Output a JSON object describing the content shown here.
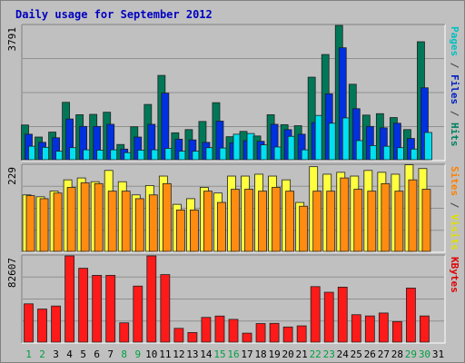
{
  "chart_data": {
    "type": "bar",
    "title": "Daily usage for September 2012",
    "days": [
      "1",
      "2",
      "3",
      "4",
      "5",
      "6",
      "7",
      "8",
      "9",
      "10",
      "11",
      "12",
      "13",
      "14",
      "15",
      "16",
      "17",
      "18",
      "19",
      "20",
      "21",
      "22",
      "23",
      "24",
      "25",
      "26",
      "27",
      "28",
      "29",
      "30",
      "31"
    ],
    "weekend_days": [
      "1",
      "2",
      "8",
      "9",
      "15",
      "16",
      "22",
      "23",
      "29",
      "30"
    ],
    "panels": [
      {
        "name": "hits-files-pages",
        "max_label": "3791",
        "ymax": 3791,
        "label_parts": [
          {
            "text": "Pages",
            "color": "#00c0c0"
          },
          {
            "text": " / ",
            "color": "#404040"
          },
          {
            "text": "Files",
            "color": "#0020c0"
          },
          {
            "text": " / ",
            "color": "#404040"
          },
          {
            "text": "Hits",
            "color": "#008060"
          }
        ],
        "series": [
          {
            "name": "Hits",
            "color": "#007858",
            "values": [
              980,
              640,
              780,
              1620,
              1270,
              1280,
              1340,
              430,
              930,
              1560,
              2380,
              760,
              850,
              1080,
              1610,
              650,
              800,
              670,
              1270,
              990,
              960,
              2330,
              2970,
              3790,
              2130,
              1260,
              1300,
              1190,
              850,
              3330,
              null
            ]
          },
          {
            "name": "Files",
            "color": "#0030e0",
            "values": [
              720,
              490,
              620,
              1150,
              940,
              940,
              1000,
              300,
              640,
              1000,
              1880,
              580,
              560,
              490,
              1090,
              480,
              540,
              520,
              1000,
              850,
              720,
              1050,
              1860,
              3160,
              1440,
              940,
              900,
              1030,
              600,
              2030,
              null
            ]
          },
          {
            "name": "Pages",
            "color": "#00e0f0",
            "values": [
              380,
              350,
              240,
              340,
              280,
              270,
              280,
              200,
              270,
              280,
              320,
              240,
              240,
              340,
              330,
              720,
              740,
              420,
              360,
              660,
              280,
              1250,
              1030,
              1180,
              540,
              400,
              380,
              340,
              300,
              770,
              null
            ]
          }
        ]
      },
      {
        "name": "visits-sites",
        "max_label": "229",
        "ymax": 229,
        "label_parts": [
          {
            "text": "Sites",
            "color": "#ff8000"
          },
          {
            "text": " / ",
            "color": "#404040"
          },
          {
            "text": "Visits",
            "color": "#e0e000"
          }
        ],
        "series": [
          {
            "name": "Visits",
            "color": "#ffff40",
            "values": [
              150,
              145,
              160,
              190,
              195,
              185,
              215,
              185,
              150,
              175,
              200,
              125,
              140,
              170,
              155,
              200,
              200,
              205,
              200,
              190,
              130,
              225,
              205,
              210,
              200,
              215,
              210,
              205,
              230,
              220,
              null
            ]
          },
          {
            "name": "Sites",
            "color": "#ff8c10",
            "values": [
              148,
              140,
              155,
              170,
              182,
              180,
              160,
              160,
              140,
              150,
              180,
              110,
              110,
              160,
              130,
              165,
              165,
              160,
              170,
              160,
              120,
              160,
              160,
              195,
              165,
              160,
              180,
              160,
              190,
              165,
              null
            ]
          }
        ]
      },
      {
        "name": "kbytes",
        "max_label": "82607",
        "ymax": 82607,
        "label_parts": [
          {
            "text": "KBytes",
            "color": "#e00000"
          }
        ],
        "series": [
          {
            "name": "KBytes",
            "color": "#ff1a1a",
            "values": [
              36700,
              31700,
              34600,
              82600,
              70800,
              64000,
              64000,
              18500,
              53700,
              82600,
              64700,
              13200,
              9200,
              23700,
              25000,
              21800,
              8600,
              17800,
              18000,
              14500,
              15600,
              53200,
              47800,
              52700,
              26300,
              25100,
              27900,
              19700,
              51800,
              25100,
              null
            ]
          }
        ]
      }
    ]
  }
}
